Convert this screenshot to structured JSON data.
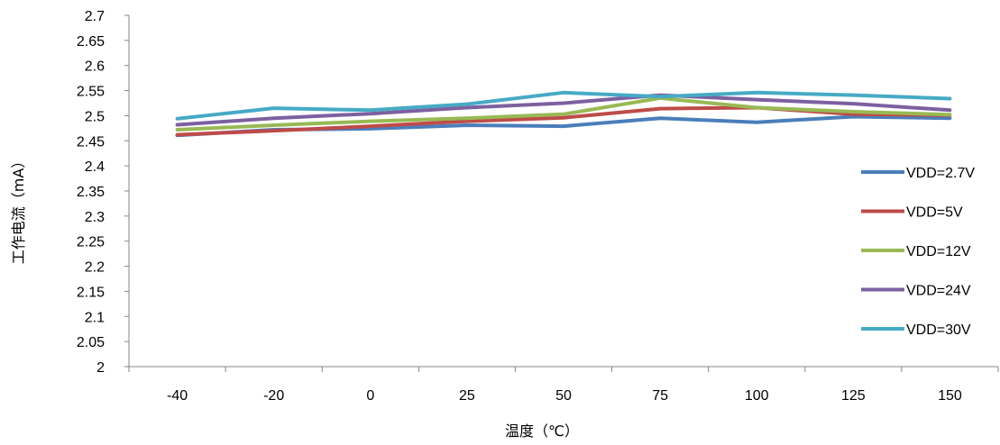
{
  "chart_data": {
    "type": "line",
    "xlabel": "温度（℃）",
    "ylabel": "工作电流（mA）",
    "categories": [
      "-40",
      "-20",
      "0",
      "25",
      "50",
      "75",
      "100",
      "125",
      "150"
    ],
    "ylim": [
      2,
      2.7
    ],
    "y_ticks": [
      "2",
      "2.05",
      "2.1",
      "2.15",
      "2.2",
      "2.25",
      "2.3",
      "2.35",
      "2.4",
      "2.45",
      "2.5",
      "2.55",
      "2.6",
      "2.65",
      "2.7"
    ],
    "grid": false,
    "legend_position": "right",
    "series": [
      {
        "name": "VDD=2.7V",
        "color": "#4a7ebb",
        "values": [
          2.461,
          2.472,
          2.474,
          2.481,
          2.479,
          2.495,
          2.487,
          2.498,
          2.495
        ]
      },
      {
        "name": "VDD=5V",
        "color": "#be4b48",
        "values": [
          2.462,
          2.47,
          2.479,
          2.489,
          2.496,
          2.514,
          2.516,
          2.503,
          2.501
        ]
      },
      {
        "name": "VDD=12V",
        "color": "#98b954",
        "values": [
          2.472,
          2.481,
          2.489,
          2.495,
          2.503,
          2.535,
          2.516,
          2.508,
          2.502
        ]
      },
      {
        "name": "VDD=24V",
        "color": "#7d60a0",
        "values": [
          2.482,
          2.495,
          2.504,
          2.516,
          2.525,
          2.541,
          2.532,
          2.524,
          2.511
        ]
      },
      {
        "name": "VDD=30V",
        "color": "#46aac5",
        "values": [
          2.494,
          2.515,
          2.511,
          2.523,
          2.546,
          2.538,
          2.546,
          2.541,
          2.534
        ]
      }
    ]
  }
}
